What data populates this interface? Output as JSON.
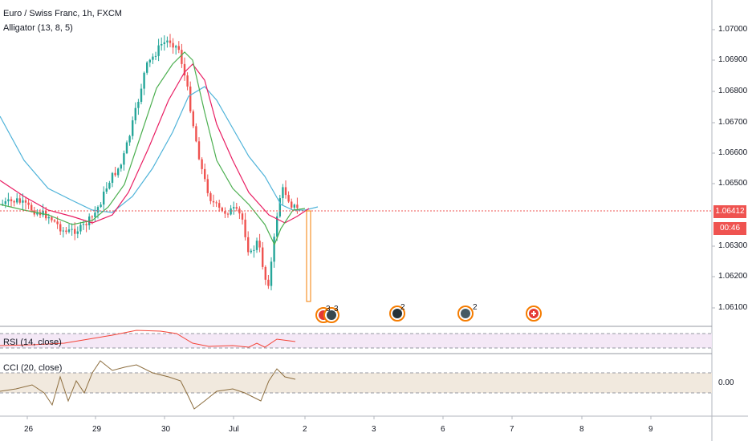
{
  "header": {
    "symbol_title": "Euro / Swiss Franc, 1h, FXCM",
    "indicator_label": "Alligator (13, 8, 5)"
  },
  "panes": {
    "rsi_label": "RSI (14, close)",
    "cci_label": "CCI (20, close)",
    "cci_level": "0.00"
  },
  "price_axis": {
    "ticks": [
      "1.07000",
      "1.06900",
      "1.06800",
      "1.06700",
      "1.06600",
      "1.06500",
      "1.06300",
      "1.06200",
      "1.06100"
    ],
    "current_price": "1.06412",
    "countdown": "00:46"
  },
  "time_axis": {
    "ticks": [
      "26",
      "29",
      "30",
      "Jul",
      "2",
      "3",
      "6",
      "7",
      "8",
      "9"
    ]
  },
  "events": [
    {
      "icon": "flag-events-icon",
      "count": "3"
    },
    {
      "icon": "dividend-events-icon",
      "count": "3"
    },
    {
      "icon": "earnings-event-icon",
      "count": "2"
    },
    {
      "icon": "globe-events-icon",
      "count": "2"
    },
    {
      "icon": "swiss-flag-event-icon",
      "count": ""
    }
  ],
  "colors": {
    "up": "#26a69a",
    "down": "#ef5350",
    "jaw": "#2196f3",
    "teeth": "#e91e63",
    "lips": "#4caf50",
    "rsi": "#f44336",
    "cci": "#8d6e3f",
    "current_price": "#ef5350"
  },
  "chart_data": {
    "type": "candlestick",
    "title": "Euro / Swiss Franc, 1h, FXCM",
    "ylim": [
      1.0605,
      1.0705
    ],
    "current_price": 1.06412,
    "x_ticks": [
      "26",
      "29",
      "30",
      "Jul",
      "2",
      "3",
      "6",
      "7",
      "8",
      "9"
    ],
    "series": [
      {
        "name": "Alligator (13, 8, 5)",
        "type": "indicator"
      },
      {
        "name": "RSI (14, close)",
        "type": "oscillator"
      },
      {
        "name": "CCI (20, close)",
        "type": "oscillator",
        "levels": [
          0.0
        ]
      }
    ]
  }
}
